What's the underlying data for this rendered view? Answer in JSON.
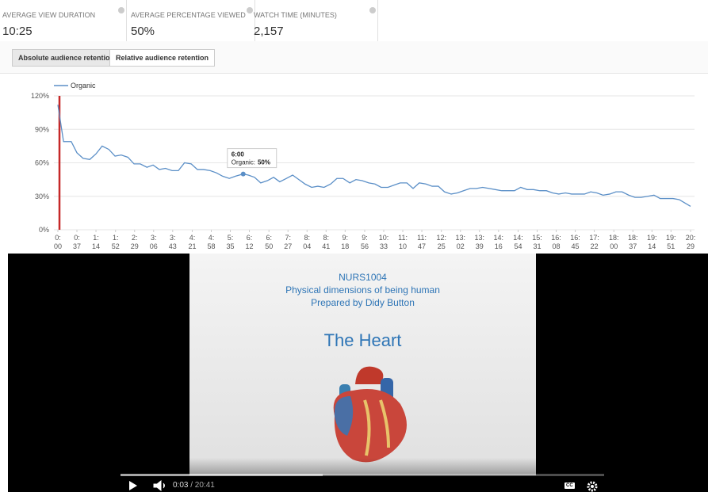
{
  "metrics": [
    {
      "label": "AVERAGE VIEW DURATION",
      "value": "10:25"
    },
    {
      "label": "AVERAGE PERCENTAGE VIEWED",
      "value": "50%"
    },
    {
      "label": "WATCH TIME (MINUTES)",
      "value": "2,157"
    }
  ],
  "tabs": [
    "Absolute audience retention",
    "Relative audience retention"
  ],
  "chart_data": {
    "type": "line",
    "x": [
      0,
      11,
      26,
      37,
      49,
      62,
      74,
      86,
      99,
      111,
      123,
      136,
      148,
      160,
      173,
      185,
      197,
      209,
      222,
      234,
      246,
      259,
      271,
      283,
      296,
      308,
      320,
      333,
      345,
      360,
      370,
      382,
      394,
      407,
      419,
      431,
      444,
      456,
      468,
      480,
      493,
      505,
      517,
      530,
      542,
      554,
      567,
      579,
      591,
      604,
      616,
      628,
      641,
      653,
      665,
      678,
      690,
      702,
      715,
      727,
      739,
      751,
      764,
      776,
      788,
      801,
      813,
      825,
      838,
      850,
      862,
      875,
      887,
      899,
      912,
      924,
      936,
      949,
      961,
      973,
      986,
      998,
      1010,
      1023,
      1035,
      1047,
      1059,
      1072,
      1084,
      1096,
      1109,
      1121,
      1133,
      1146,
      1158,
      1170,
      1183,
      1195,
      1207,
      1229
    ],
    "series": [
      {
        "name": "Organic",
        "color": "#5b8fc7",
        "values": [
          112,
          79,
          79,
          69,
          64,
          63,
          68,
          75,
          72,
          66,
          67,
          65,
          59,
          59,
          56,
          58,
          54,
          55,
          53,
          53,
          60,
          59,
          54,
          54,
          53,
          51,
          48,
          46,
          48,
          50,
          49,
          47,
          42,
          44,
          47,
          43,
          46,
          49,
          45,
          41,
          38,
          39,
          38,
          41,
          46,
          46,
          42,
          45,
          44,
          42,
          41,
          38,
          38,
          40,
          42,
          42,
          37,
          42,
          41,
          39,
          39,
          34,
          32,
          33,
          35,
          37,
          37,
          38,
          37,
          36,
          35,
          35,
          35,
          38,
          36,
          36,
          35,
          35,
          33,
          32,
          33,
          32,
          32,
          32,
          34,
          33,
          31,
          32,
          34,
          34,
          31,
          29,
          29,
          30,
          31,
          28,
          28,
          28,
          27,
          21
        ]
      }
    ],
    "xlim": [
      0,
      1229
    ],
    "xticks": [
      {
        "value": 0,
        "label": "0:\n00"
      },
      {
        "value": 37,
        "label": "0:\n37"
      },
      {
        "value": 74,
        "label": "1:\n14"
      },
      {
        "value": 112,
        "label": "1:\n52"
      },
      {
        "value": 149,
        "label": "2:\n29"
      },
      {
        "value": 186,
        "label": "3:\n06"
      },
      {
        "value": 223,
        "label": "3:\n43"
      },
      {
        "value": 261,
        "label": "4:\n21"
      },
      {
        "value": 298,
        "label": "4:\n58"
      },
      {
        "value": 335,
        "label": "5:\n35"
      },
      {
        "value": 372,
        "label": "6:\n12"
      },
      {
        "value": 410,
        "label": "6:\n50"
      },
      {
        "value": 447,
        "label": "7:\n27"
      },
      {
        "value": 484,
        "label": "8:\n04"
      },
      {
        "value": 521,
        "label": "8:\n41"
      },
      {
        "value": 558,
        "label": "9:\n18"
      },
      {
        "value": 596,
        "label": "9:\n56"
      },
      {
        "value": 633,
        "label": "10:\n33"
      },
      {
        "value": 670,
        "label": "11:\n10"
      },
      {
        "value": 707,
        "label": "11:\n47"
      },
      {
        "value": 745,
        "label": "12:\n25"
      },
      {
        "value": 782,
        "label": "13:\n02"
      },
      {
        "value": 819,
        "label": "13:\n39"
      },
      {
        "value": 856,
        "label": "14:\n16"
      },
      {
        "value": 894,
        "label": "14:\n54"
      },
      {
        "value": 931,
        "label": "15:\n31"
      },
      {
        "value": 968,
        "label": "16:\n08"
      },
      {
        "value": 1005,
        "label": "16:\n45"
      },
      {
        "value": 1042,
        "label": "17:\n22"
      },
      {
        "value": 1080,
        "label": "18:\n00"
      },
      {
        "value": 1117,
        "label": "18:\n37"
      },
      {
        "value": 1154,
        "label": "19:\n14"
      },
      {
        "value": 1191,
        "label": "19:\n51"
      },
      {
        "value": 1229,
        "label": "20:\n29"
      }
    ],
    "ylim": [
      0,
      120
    ],
    "yticks": [
      {
        "value": 0,
        "label": "0%"
      },
      {
        "value": 30,
        "label": "30%"
      },
      {
        "value": 60,
        "label": "60%"
      },
      {
        "value": 90,
        "label": "90%"
      },
      {
        "value": 120,
        "label": "120%"
      }
    ],
    "grid": true,
    "legend": "top-left",
    "tooltip": {
      "point": 29,
      "title": "6:00",
      "series_label": "Organic:",
      "value_label": "50%"
    }
  },
  "video": {
    "course": "NURS1004",
    "subtitle": "Physical dimensions of being human",
    "author": "Prepared by Didy Button",
    "slide_title": "The Heart",
    "current_time": "0:03",
    "duration": "/ 20:41",
    "cc": "CC"
  }
}
